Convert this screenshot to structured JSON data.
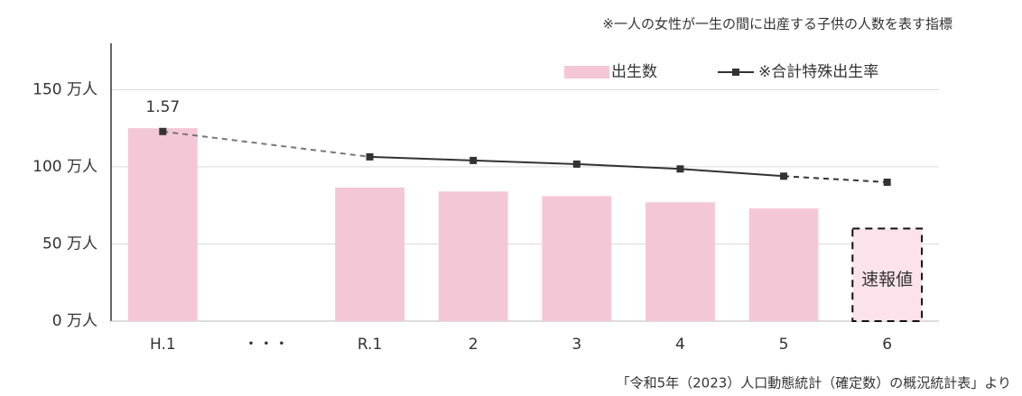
{
  "chart_data": {
    "type": "bar",
    "note": "※一人の女性が一生の間に出産する子供の人数を表す指標",
    "source": "「令和5年（2023）人口動態統計（確定数）の概況統計表」より",
    "categories": [
      "H.1",
      "・・・",
      "R.1",
      "2",
      "3",
      "4",
      "5",
      "6"
    ],
    "series": [
      {
        "name": "出生数",
        "color": "#f4c7d6",
        "values": [
          125,
          null,
          86.5,
          84,
          81,
          77,
          73,
          60
        ]
      },
      {
        "name": "※合計特殊出生率",
        "type": "line",
        "axis": "y2",
        "color": "#333333",
        "values": [
          1.57,
          null,
          1.36,
          1.33,
          1.3,
          1.26,
          1.2,
          1.15
        ],
        "value_labels": [
          "1.57",
          null,
          null,
          null,
          null,
          null,
          null,
          null
        ]
      }
    ],
    "provisional": {
      "label": "速報値",
      "index": 7,
      "color": "#fce3eb"
    },
    "ylim": [
      0,
      180
    ],
    "yticks": [
      {
        "value": 0,
        "label": "0 万人"
      },
      {
        "value": 50,
        "label": "50 万人"
      },
      {
        "value": 100,
        "label": "100 万人"
      },
      {
        "value": 150,
        "label": "150 万人"
      }
    ],
    "y2lim": [
      0,
      2.3
    ],
    "grid": true,
    "legend": "top-right"
  }
}
